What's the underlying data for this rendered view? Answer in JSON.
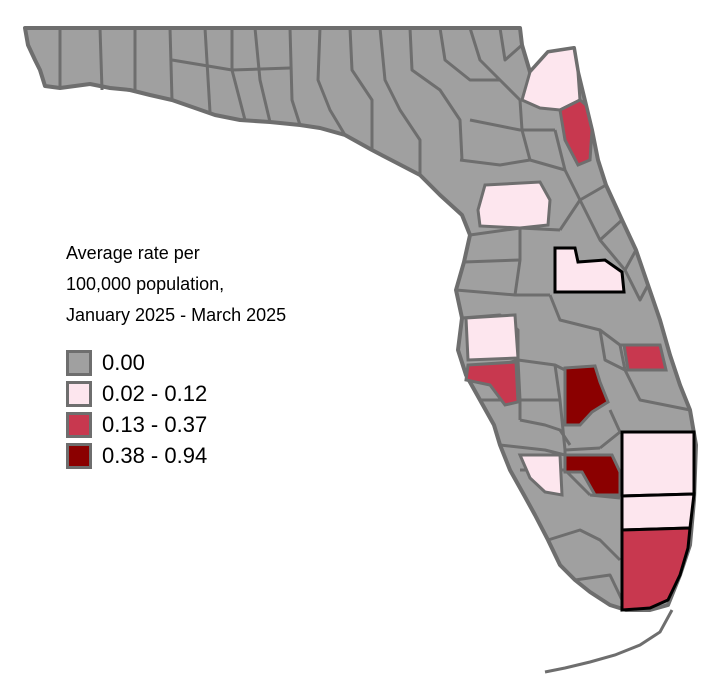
{
  "legend": {
    "title_lines": [
      "Average rate per",
      "100,000 population,",
      "January 2025 - March 2025"
    ],
    "classes": [
      {
        "label": "0.00",
        "color": "#a0a0a0"
      },
      {
        "label": "0.02 - 0.12",
        "color": "#fde6ee"
      },
      {
        "label": "0.13 - 0.37",
        "color": "#c8384f"
      },
      {
        "label": "0.38 - 0.94",
        "color": "#8b0000"
      }
    ]
  },
  "colors": {
    "county_border": "#6e6e6e",
    "highlight_border": "#000000",
    "background": "#ffffff"
  }
}
